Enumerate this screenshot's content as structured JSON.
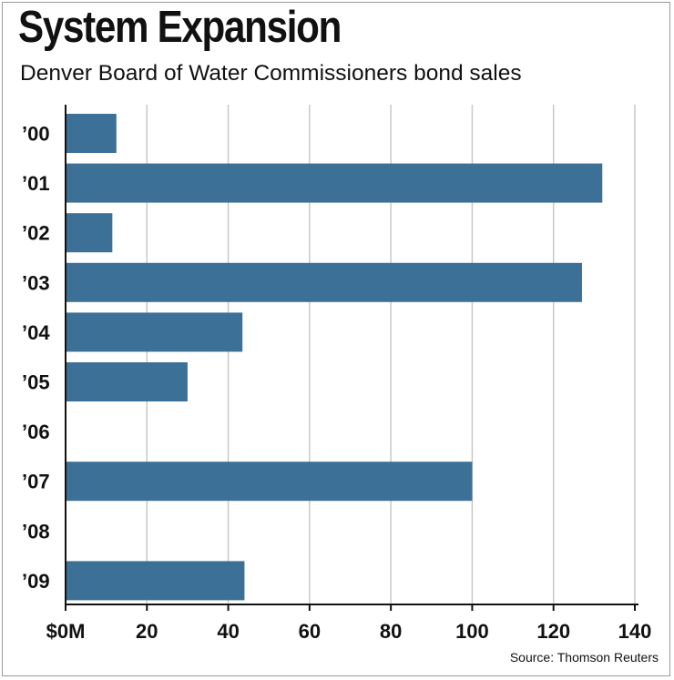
{
  "chart_data": {
    "type": "bar",
    "orientation": "horizontal",
    "title": "System Expansion",
    "subtitle": "Denver Board of Water Commissioners bond sales",
    "categories": [
      "’00",
      "’01",
      "’02",
      "’03",
      "’04",
      "’05",
      "’06",
      "’07",
      "’08",
      "’09"
    ],
    "values": [
      12.5,
      132,
      11.5,
      127,
      43.5,
      30,
      0,
      100,
      0,
      44
    ],
    "xlabel": "",
    "ylabel": "",
    "xlim": [
      0,
      140
    ],
    "ticks": [
      0,
      20,
      40,
      60,
      80,
      100,
      120,
      140
    ],
    "tick_labels": [
      "$0M",
      "20",
      "40",
      "60",
      "80",
      "100",
      "120",
      "140"
    ],
    "grid": true,
    "bar_color": "#3d7097",
    "grid_color": "#c8c8c8",
    "source": "Source: Thomson Reuters"
  }
}
